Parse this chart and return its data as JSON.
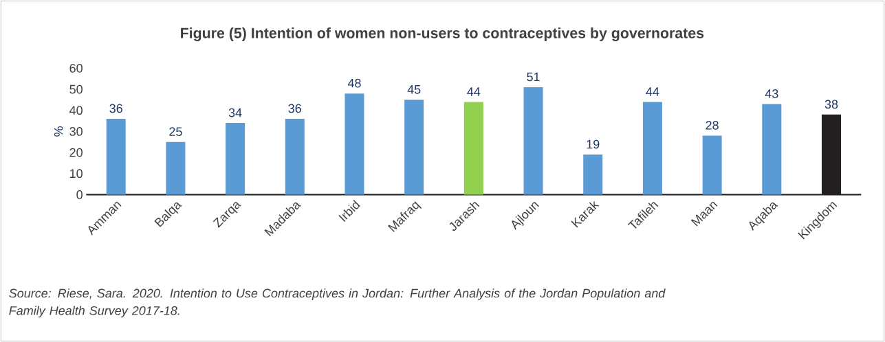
{
  "chart_data": {
    "type": "bar",
    "title": "Figure (5) Intention of women non-users to contraceptives by governorates",
    "ylabel": "%",
    "categories": [
      "Amman",
      "Balqa",
      "Zarqa",
      "Madaba",
      "Irbid",
      "Mafraq",
      "Jarash",
      "Ajloun",
      "Karak",
      "Tafileh",
      "Maan",
      "Aqaba",
      "Kingdom"
    ],
    "values": [
      36,
      25,
      34,
      36,
      48,
      45,
      44,
      51,
      19,
      44,
      28,
      43,
      38
    ],
    "colors": [
      "#5b9bd5",
      "#5b9bd5",
      "#5b9bd5",
      "#5b9bd5",
      "#5b9bd5",
      "#5b9bd5",
      "#92d050",
      "#5b9bd5",
      "#5b9bd5",
      "#5b9bd5",
      "#5b9bd5",
      "#5b9bd5",
      "#231f20"
    ],
    "ylim": [
      0,
      60
    ],
    "yticks": [
      0,
      10,
      20,
      30,
      40,
      50,
      60
    ],
    "data_labels": true,
    "grid": false,
    "annotations": [
      "*Source: Riese, Sara. 2020. Intention to Use Contraceptives in Jordan: Further Analysis of the Jordan Population and Family Health Survey 2017-18.*"
    ]
  }
}
